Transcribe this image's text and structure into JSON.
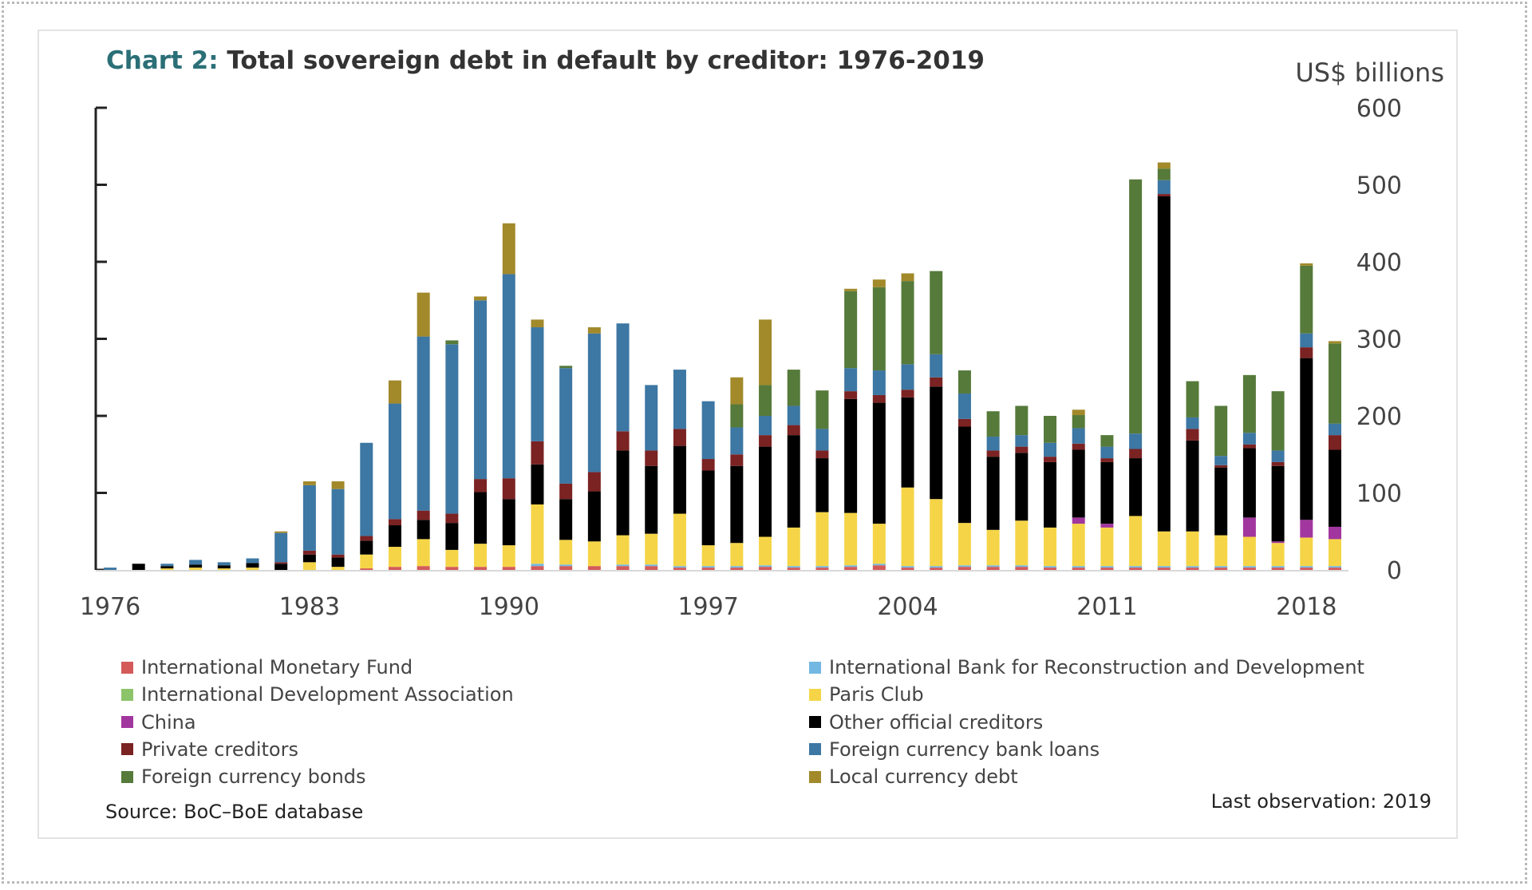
{
  "header": {
    "title_lead": "Chart 2:",
    "title_rest": " Total sovereign debt in default by creditor: 1976-2019",
    "unit": "US$ billions"
  },
  "footer": {
    "source": "Source: BoC–BoE database",
    "last_observation": "Last observation: 2019"
  },
  "chart_data": {
    "type": "bar",
    "stacked": true,
    "title": "Chart 2: Total sovereign debt in default by creditor: 1976-2019",
    "ylabel": "US$ billions",
    "ylim": [
      0,
      600
    ],
    "yticks": [
      0,
      100,
      200,
      300,
      400,
      500,
      600
    ],
    "y_axis_side": "right",
    "grid": false,
    "legend_placement": "bottom",
    "x_tick_labels": [
      "1976",
      "1983",
      "1990",
      "1997",
      "2004",
      "2011",
      "2018"
    ],
    "categories": [
      1976,
      1977,
      1978,
      1979,
      1980,
      1981,
      1982,
      1983,
      1984,
      1985,
      1986,
      1987,
      1988,
      1989,
      1990,
      1991,
      1992,
      1993,
      1994,
      1995,
      1996,
      1997,
      1998,
      1999,
      2000,
      2001,
      2002,
      2003,
      2004,
      2005,
      2006,
      2007,
      2008,
      2009,
      2010,
      2011,
      2012,
      2013,
      2014,
      2015,
      2016,
      2017,
      2018,
      2019
    ],
    "series": [
      {
        "name": "International Monetary Fund",
        "color": "#d45a5a",
        "values": [
          0,
          0,
          0,
          0,
          0,
          0,
          0,
          0,
          0,
          2,
          4,
          5,
          4,
          4,
          4,
          5,
          5,
          5,
          5,
          5,
          3,
          3,
          3,
          4,
          3,
          3,
          4,
          6,
          3,
          3,
          4,
          4,
          4,
          3,
          3,
          3,
          3,
          3,
          3,
          3,
          3,
          3,
          3,
          3
        ]
      },
      {
        "name": "International Bank for Reconstruction and Development",
        "color": "#72b8e2",
        "values": [
          0,
          0,
          0,
          0,
          0,
          0,
          0,
          0,
          0,
          0,
          0,
          0,
          0,
          0,
          0,
          3,
          2,
          0,
          2,
          2,
          2,
          2,
          2,
          2,
          2,
          2,
          2,
          2,
          2,
          2,
          2,
          2,
          2,
          2,
          2,
          2,
          2,
          2,
          2,
          2,
          2,
          2,
          2,
          2
        ]
      },
      {
        "name": "International Development Association",
        "color": "#8cc46a",
        "values": [
          0,
          0,
          0,
          0,
          0,
          0,
          0,
          0,
          0,
          0,
          0,
          0,
          0,
          0,
          0,
          0,
          0,
          0,
          0,
          0,
          0,
          0,
          0,
          0,
          0,
          0,
          0,
          0,
          0,
          0,
          0,
          0,
          0,
          0,
          0,
          0,
          0,
          0,
          0,
          0,
          0,
          0,
          0,
          0
        ]
      },
      {
        "name": "Paris Club",
        "color": "#f5d547",
        "values": [
          0,
          0,
          2,
          3,
          2,
          3,
          0,
          10,
          4,
          18,
          26,
          35,
          22,
          30,
          28,
          77,
          32,
          32,
          38,
          40,
          68,
          27,
          30,
          37,
          50,
          70,
          68,
          52,
          102,
          87,
          55,
          46,
          58,
          50,
          55,
          50,
          65,
          45,
          45,
          40,
          38,
          30,
          37,
          35
        ]
      },
      {
        "name": "China",
        "color": "#a2369f",
        "values": [
          0,
          0,
          0,
          0,
          0,
          0,
          0,
          0,
          0,
          0,
          0,
          0,
          0,
          0,
          0,
          0,
          0,
          0,
          0,
          0,
          0,
          0,
          0,
          0,
          0,
          0,
          0,
          0,
          0,
          0,
          0,
          0,
          0,
          0,
          8,
          5,
          0,
          0,
          0,
          0,
          25,
          2,
          23,
          16
        ]
      },
      {
        "name": "Other official creditors",
        "color": "#000000",
        "values": [
          0,
          8,
          3,
          4,
          4,
          6,
          8,
          10,
          12,
          18,
          28,
          25,
          35,
          67,
          60,
          52,
          53,
          65,
          110,
          88,
          88,
          97,
          100,
          117,
          120,
          70,
          148,
          157,
          117,
          146,
          125,
          95,
          88,
          85,
          88,
          80,
          75,
          435,
          118,
          88,
          90,
          98,
          210,
          100
        ]
      },
      {
        "name": "Private creditors",
        "color": "#7b2222",
        "values": [
          0,
          0,
          0,
          0,
          0,
          0,
          2,
          5,
          4,
          6,
          8,
          12,
          12,
          17,
          27,
          30,
          20,
          25,
          25,
          20,
          22,
          15,
          15,
          15,
          13,
          10,
          10,
          10,
          10,
          12,
          10,
          8,
          8,
          7,
          8,
          5,
          12,
          3,
          15,
          3,
          5,
          5,
          14,
          19
        ]
      },
      {
        "name": "Foreign currency bank loans",
        "color": "#3d77a3",
        "values": [
          3,
          0,
          3,
          6,
          4,
          6,
          38,
          85,
          85,
          121,
          150,
          226,
          220,
          232,
          265,
          148,
          150,
          180,
          140,
          85,
          77,
          75,
          35,
          25,
          25,
          28,
          30,
          32,
          33,
          30,
          33,
          18,
          15,
          18,
          20,
          15,
          20,
          18,
          15,
          12,
          15,
          15,
          18,
          15
        ]
      },
      {
        "name": "Foreign currency bonds",
        "color": "#567a3a",
        "values": [
          0,
          0,
          0,
          0,
          0,
          0,
          0,
          0,
          0,
          0,
          0,
          0,
          5,
          0,
          0,
          0,
          3,
          0,
          0,
          0,
          0,
          0,
          30,
          40,
          47,
          50,
          100,
          108,
          108,
          108,
          30,
          33,
          38,
          35,
          17,
          15,
          330,
          15,
          47,
          65,
          75,
          77,
          88,
          104
        ]
      },
      {
        "name": "Local currency debt",
        "color": "#a2892a",
        "values": [
          0,
          0,
          0,
          0,
          0,
          0,
          2,
          5,
          10,
          0,
          30,
          57,
          0,
          5,
          66,
          10,
          0,
          8,
          0,
          0,
          0,
          0,
          35,
          85,
          0,
          0,
          3,
          10,
          10,
          0,
          0,
          0,
          0,
          0,
          7,
          0,
          0,
          8,
          0,
          0,
          0,
          0,
          3,
          3
        ]
      }
    ]
  }
}
